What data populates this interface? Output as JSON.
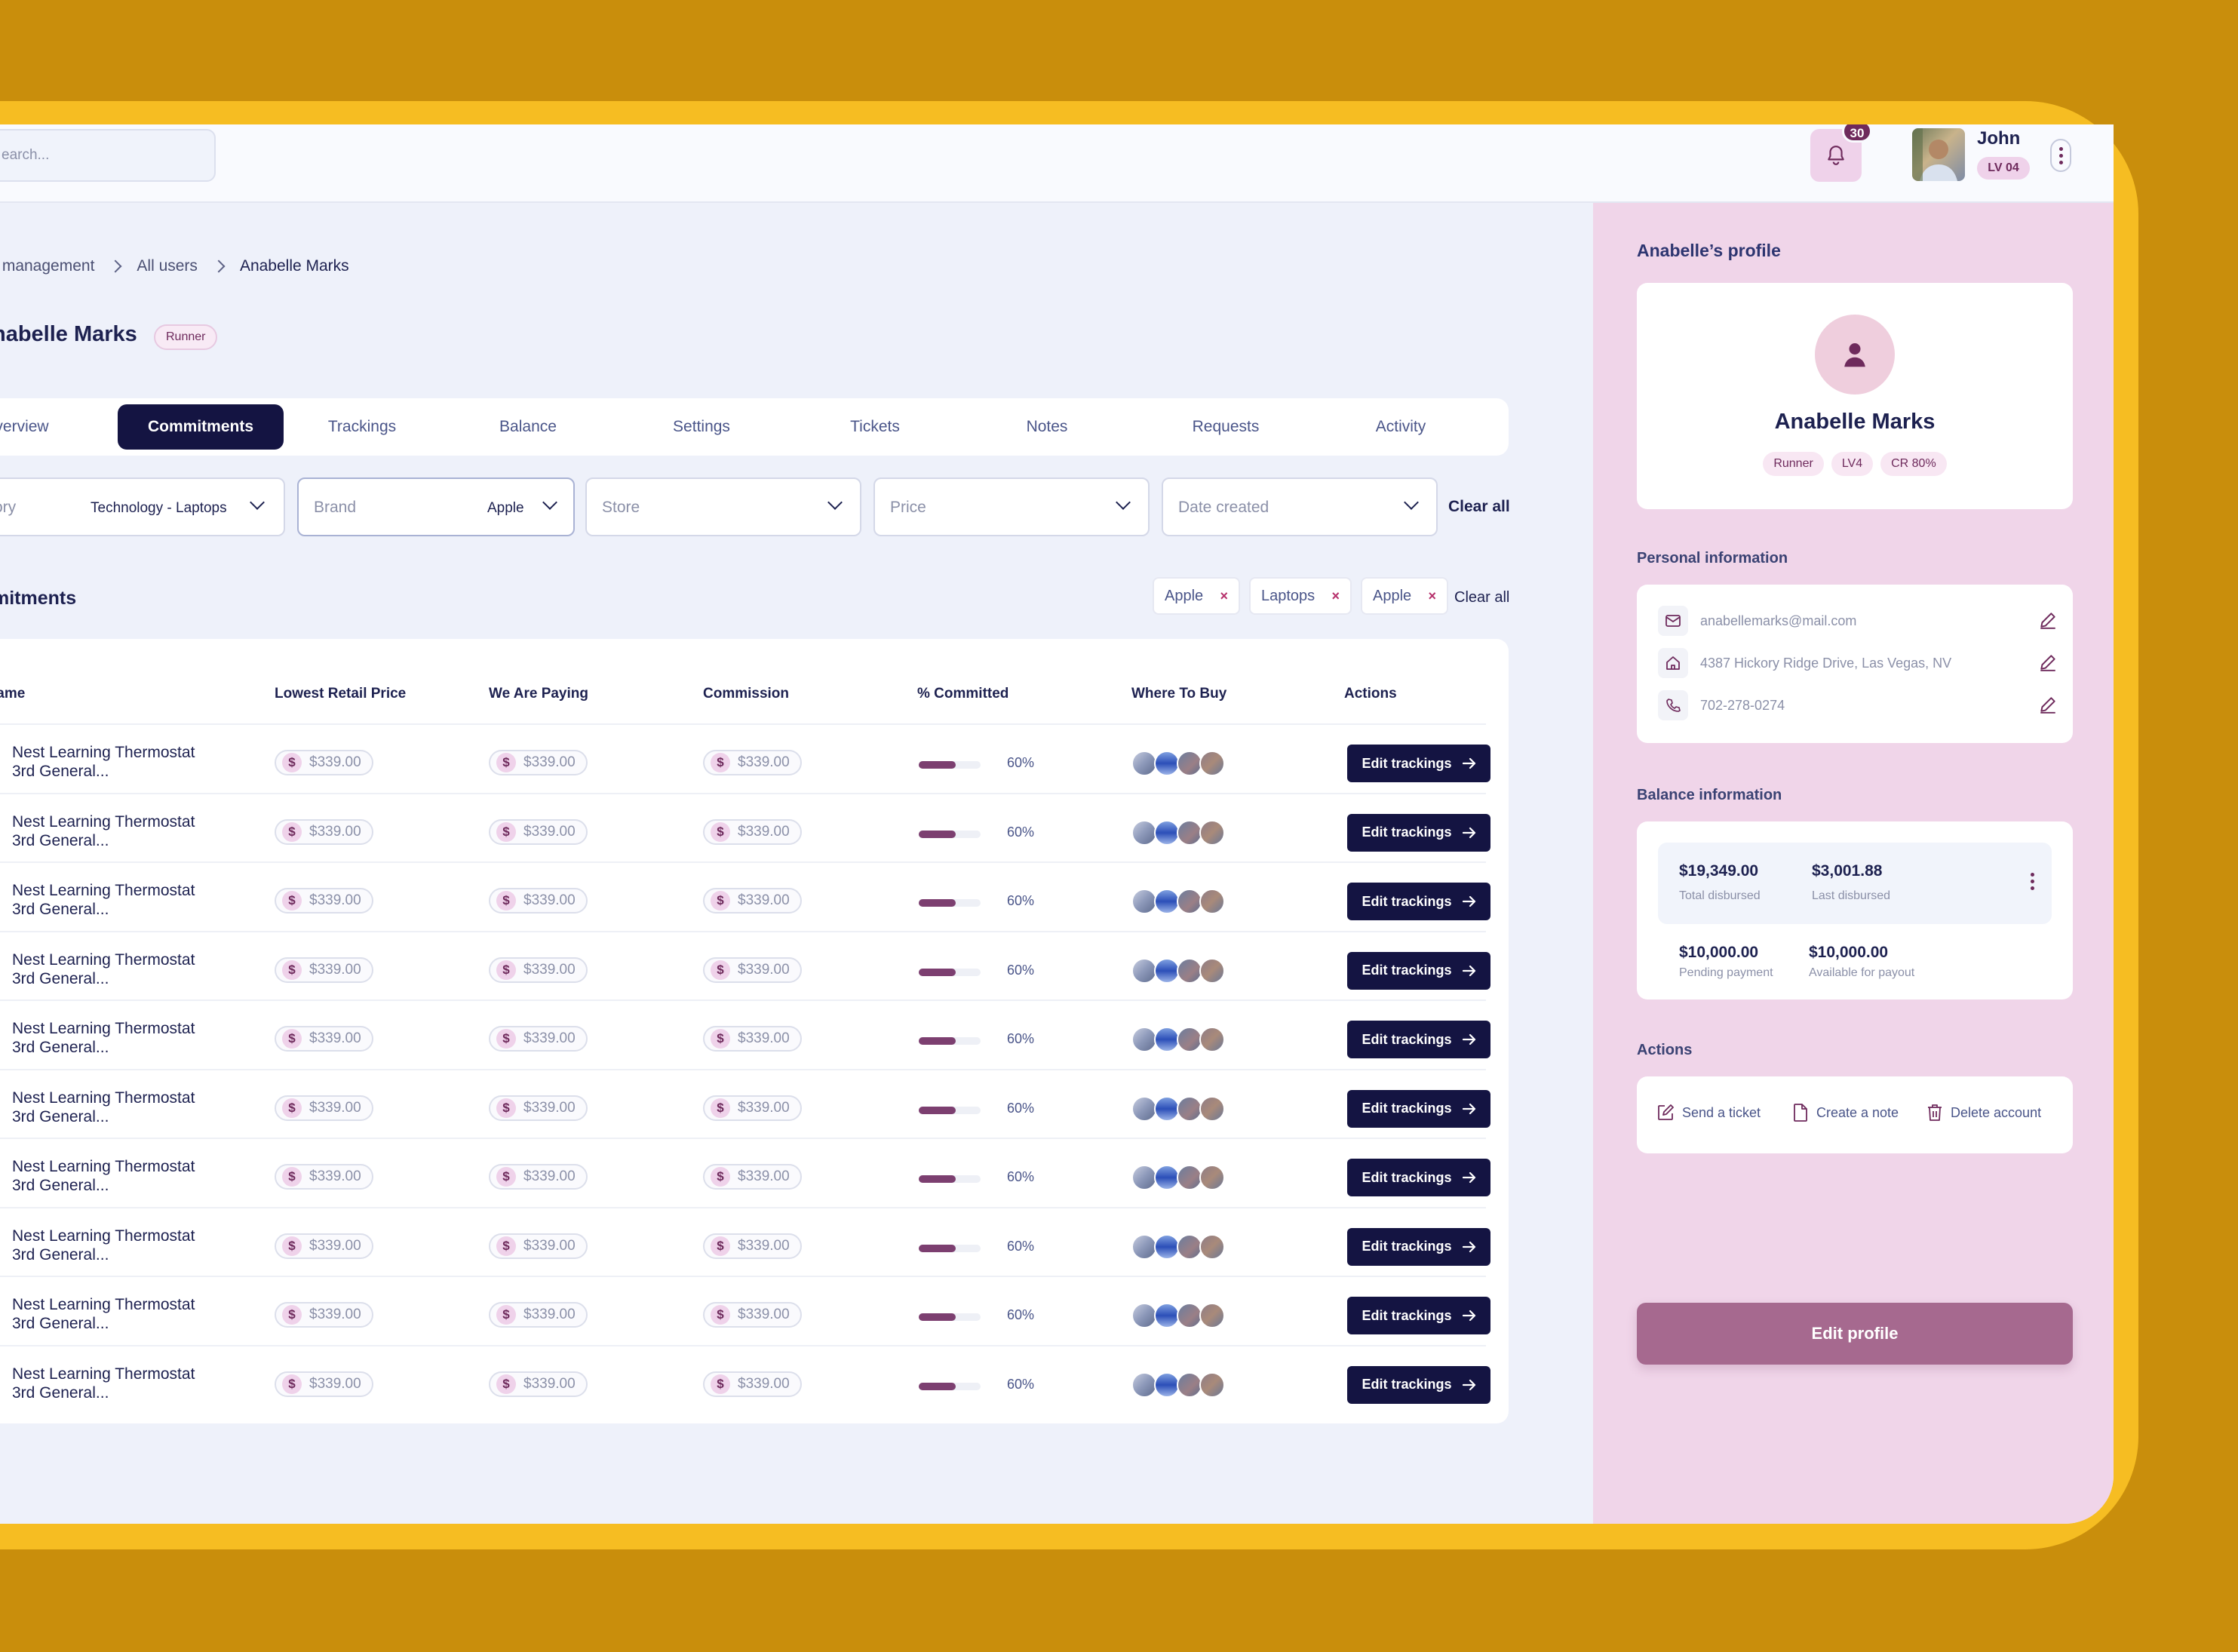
{
  "search": {
    "placeholder": "earch..."
  },
  "header": {
    "notifications": "30",
    "user_name": "John",
    "user_level": "LV 04"
  },
  "breadcrumb": [
    "r management",
    "All users",
    "Anabelle Marks"
  ],
  "page": {
    "title": "nabelle Marks",
    "role": "Runner"
  },
  "tabs": [
    "verview",
    "Commitments",
    "Trackings",
    "Balance",
    "Settings",
    "Tickets",
    "Notes",
    "Requests",
    "Activity"
  ],
  "active_tab": "Commitments",
  "filters": [
    {
      "label": "ory",
      "value": "Technology - Laptops"
    },
    {
      "label": "Brand",
      "value": "Apple"
    },
    {
      "label": "Store",
      "value": ""
    },
    {
      "label": "Price",
      "value": ""
    },
    {
      "label": "Date created",
      "value": ""
    }
  ],
  "filters_clear": "Clear all",
  "section_title": "mitments",
  "active_chips": [
    "Apple",
    "Laptops",
    "Apple"
  ],
  "chips_clear": "Clear all",
  "table": {
    "columns": [
      "lame",
      "Lowest Retail Price",
      "We Are Paying",
      "Commission",
      "% Committed",
      "Where To Buy",
      "Actions"
    ],
    "rows": [
      {
        "name1": "Nest Learning Thermostat",
        "name2": "3rd General...",
        "lowest": "$339.00",
        "paying": "$339.00",
        "commission": "$339.00",
        "committed": 0.6,
        "committed_label": "60%",
        "action": "Edit trackings"
      },
      {
        "name1": "Nest Learning Thermostat",
        "name2": "3rd General...",
        "lowest": "$339.00",
        "paying": "$339.00",
        "commission": "$339.00",
        "committed": 0.6,
        "committed_label": "60%",
        "action": "Edit trackings"
      },
      {
        "name1": "Nest Learning Thermostat",
        "name2": "3rd General...",
        "lowest": "$339.00",
        "paying": "$339.00",
        "commission": "$339.00",
        "committed": 0.6,
        "committed_label": "60%",
        "action": "Edit trackings"
      },
      {
        "name1": "Nest Learning Thermostat",
        "name2": "3rd General...",
        "lowest": "$339.00",
        "paying": "$339.00",
        "commission": "$339.00",
        "committed": 0.6,
        "committed_label": "60%",
        "action": "Edit trackings"
      },
      {
        "name1": "Nest Learning Thermostat",
        "name2": "3rd General...",
        "lowest": "$339.00",
        "paying": "$339.00",
        "commission": "$339.00",
        "committed": 0.6,
        "committed_label": "60%",
        "action": "Edit trackings"
      },
      {
        "name1": "Nest Learning Thermostat",
        "name2": "3rd General...",
        "lowest": "$339.00",
        "paying": "$339.00",
        "commission": "$339.00",
        "committed": 0.6,
        "committed_label": "60%",
        "action": "Edit trackings"
      },
      {
        "name1": "Nest Learning Thermostat",
        "name2": "3rd General...",
        "lowest": "$339.00",
        "paying": "$339.00",
        "commission": "$339.00",
        "committed": 0.6,
        "committed_label": "60%",
        "action": "Edit trackings"
      },
      {
        "name1": "Nest Learning Thermostat",
        "name2": "3rd General...",
        "lowest": "$339.00",
        "paying": "$339.00",
        "commission": "$339.00",
        "committed": 0.6,
        "committed_label": "60%",
        "action": "Edit trackings"
      },
      {
        "name1": "Nest Learning Thermostat",
        "name2": "3rd General...",
        "lowest": "$339.00",
        "paying": "$339.00",
        "commission": "$339.00",
        "committed": 0.6,
        "committed_label": "60%",
        "action": "Edit trackings"
      },
      {
        "name1": "Nest Learning Thermostat",
        "name2": "3rd General...",
        "lowest": "$339.00",
        "paying": "$339.00",
        "commission": "$339.00",
        "committed": 0.6,
        "committed_label": "60%",
        "action": "Edit trackings"
      }
    ]
  },
  "profile": {
    "heading": "Anabelle’s profile",
    "name": "Anabelle Marks",
    "chips": [
      "Runner",
      "LV4",
      "CR 80%"
    ]
  },
  "personal": {
    "heading": "Personal information",
    "email": "anabellemarks@mail.com",
    "address": "4387 Hickory Ridge Drive, Las Vegas, NV",
    "phone": "702-278-0274"
  },
  "balance": {
    "heading": "Balance information",
    "total_disbursed": "$19,349.00",
    "total_disbursed_label": "Total disbursed",
    "last_disbursed": "$3,001.88",
    "last_disbursed_label": "Last disbursed",
    "pending": "$10,000.00",
    "pending_label": "Pending payment",
    "available": "$10,000.00",
    "available_label": "Available for payout"
  },
  "actions": {
    "heading": "Actions",
    "send_ticket": "Send a ticket",
    "create_note": "Create a note",
    "delete_account": "Delete account"
  },
  "edit_profile": "Edit profile",
  "colors": {
    "accent": "#141442",
    "brand_pink": "#F0D5E9",
    "progress": "#7C3F70",
    "background": "#C98E0C",
    "frame": "#F6BD22"
  }
}
